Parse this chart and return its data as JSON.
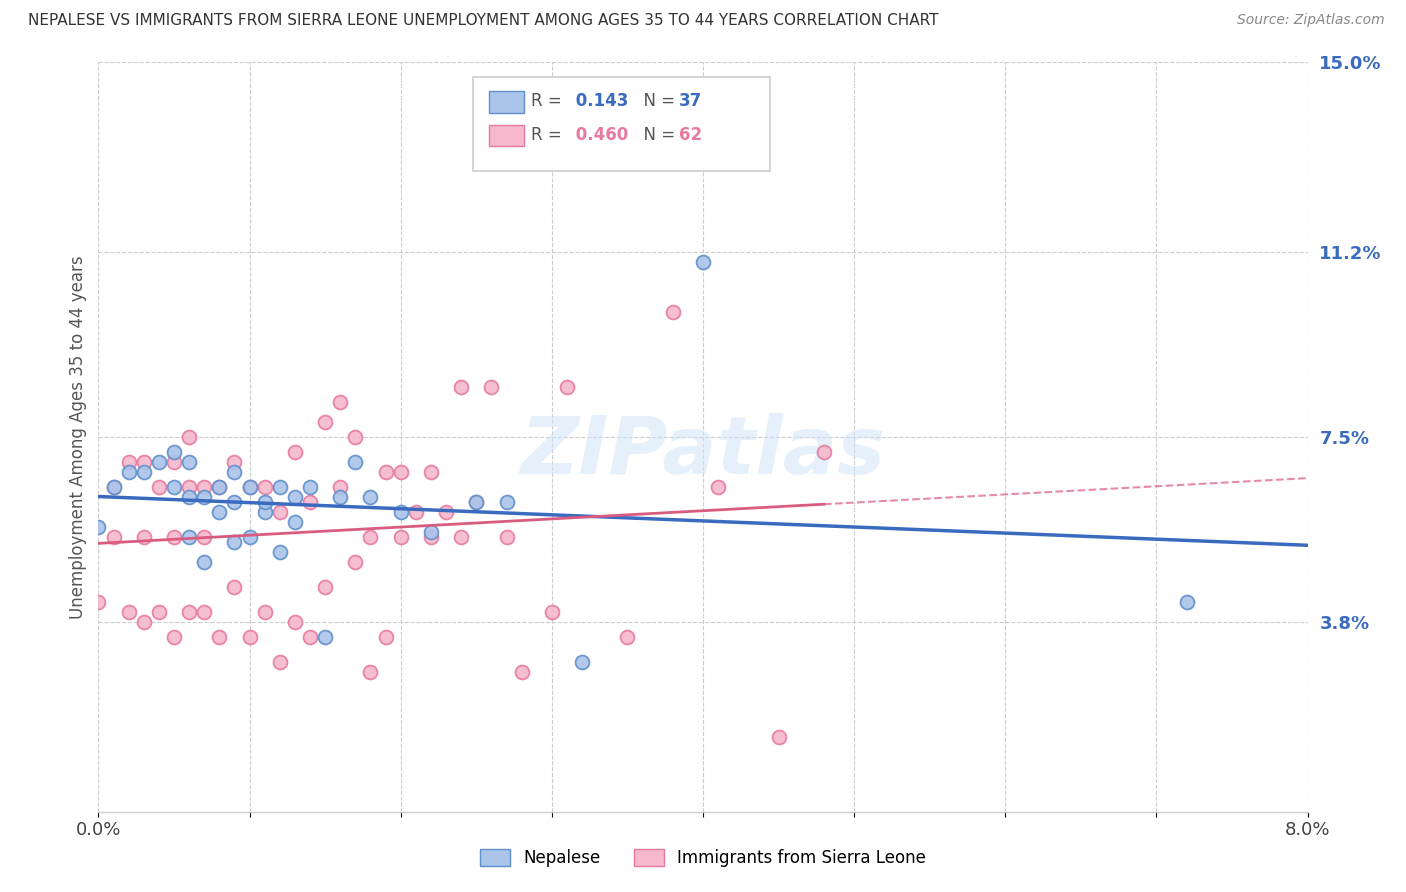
{
  "title": "NEPALESE VS IMMIGRANTS FROM SIERRA LEONE UNEMPLOYMENT AMONG AGES 35 TO 44 YEARS CORRELATION CHART",
  "source": "Source: ZipAtlas.com",
  "ylabel": "Unemployment Among Ages 35 to 44 years",
  "xlim": [
    0.0,
    0.08
  ],
  "ylim": [
    0.0,
    0.15
  ],
  "xticks": [
    0.0,
    0.01,
    0.02,
    0.03,
    0.04,
    0.05,
    0.06,
    0.07,
    0.08
  ],
  "xticklabels": [
    "0.0%",
    "",
    "",
    "",
    "",
    "",
    "",
    "",
    "8.0%"
  ],
  "yticks_right": [
    0.038,
    0.075,
    0.112,
    0.15
  ],
  "yticklabels_right": [
    "3.8%",
    "7.5%",
    "11.2%",
    "15.0%"
  ],
  "blue_R": 0.143,
  "blue_N": 37,
  "pink_R": 0.46,
  "pink_N": 62,
  "blue_color": "#aac4ea",
  "pink_color": "#f5b8cc",
  "blue_edge_color": "#6090cc",
  "pink_edge_color": "#e87aa0",
  "blue_line_color": "#3a6bbf",
  "pink_line_color": "#d95c80",
  "background_color": "#ffffff",
  "watermark_text": "ZIPatlas",
  "blue_scatter_x": [
    0.0,
    0.001,
    0.002,
    0.003,
    0.004,
    0.005,
    0.005,
    0.006,
    0.006,
    0.006,
    0.007,
    0.007,
    0.008,
    0.008,
    0.009,
    0.009,
    0.009,
    0.01,
    0.01,
    0.011,
    0.011,
    0.012,
    0.012,
    0.013,
    0.013,
    0.014,
    0.015,
    0.016,
    0.017,
    0.018,
    0.02,
    0.022,
    0.025,
    0.027,
    0.032,
    0.04,
    0.072
  ],
  "blue_scatter_y": [
    0.057,
    0.065,
    0.068,
    0.068,
    0.07,
    0.065,
    0.072,
    0.055,
    0.063,
    0.07,
    0.05,
    0.063,
    0.06,
    0.065,
    0.054,
    0.062,
    0.068,
    0.055,
    0.065,
    0.06,
    0.062,
    0.052,
    0.065,
    0.058,
    0.063,
    0.065,
    0.035,
    0.063,
    0.07,
    0.063,
    0.06,
    0.056,
    0.062,
    0.062,
    0.03,
    0.11,
    0.042
  ],
  "pink_scatter_x": [
    0.0,
    0.001,
    0.001,
    0.002,
    0.002,
    0.003,
    0.003,
    0.003,
    0.004,
    0.004,
    0.005,
    0.005,
    0.005,
    0.006,
    0.006,
    0.006,
    0.007,
    0.007,
    0.007,
    0.008,
    0.008,
    0.009,
    0.009,
    0.01,
    0.01,
    0.011,
    0.011,
    0.012,
    0.012,
    0.013,
    0.013,
    0.014,
    0.014,
    0.015,
    0.015,
    0.016,
    0.016,
    0.017,
    0.017,
    0.018,
    0.018,
    0.019,
    0.019,
    0.02,
    0.02,
    0.021,
    0.022,
    0.022,
    0.023,
    0.024,
    0.024,
    0.025,
    0.026,
    0.027,
    0.028,
    0.03,
    0.031,
    0.035,
    0.038,
    0.041,
    0.045,
    0.048
  ],
  "pink_scatter_y": [
    0.042,
    0.055,
    0.065,
    0.04,
    0.07,
    0.038,
    0.055,
    0.07,
    0.04,
    0.065,
    0.035,
    0.055,
    0.07,
    0.04,
    0.065,
    0.075,
    0.04,
    0.055,
    0.065,
    0.035,
    0.065,
    0.045,
    0.07,
    0.035,
    0.065,
    0.04,
    0.065,
    0.03,
    0.06,
    0.038,
    0.072,
    0.035,
    0.062,
    0.045,
    0.078,
    0.065,
    0.082,
    0.05,
    0.075,
    0.028,
    0.055,
    0.035,
    0.068,
    0.055,
    0.068,
    0.06,
    0.055,
    0.068,
    0.06,
    0.085,
    0.055,
    0.062,
    0.085,
    0.055,
    0.028,
    0.04,
    0.085,
    0.035,
    0.1,
    0.065,
    0.015,
    0.072
  ]
}
